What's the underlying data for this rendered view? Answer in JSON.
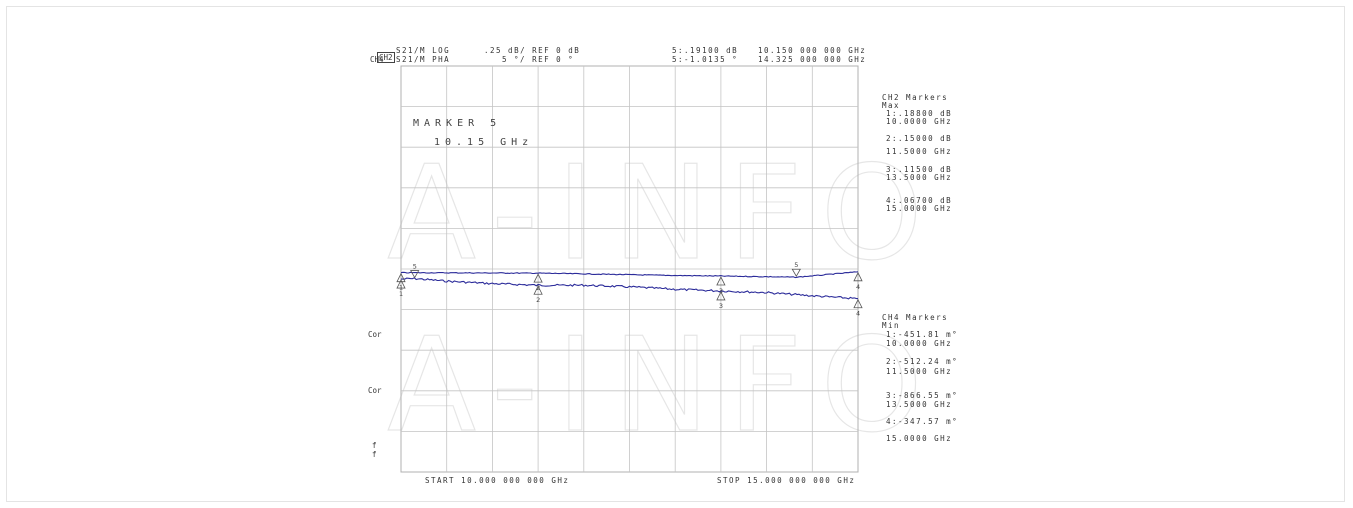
{
  "header": {
    "ch2_tag": "CH2",
    "ch2_param": "S21/M LOG",
    "ch2_scale": ".25 dB/ REF 0 dB",
    "ch2_marker_val": "5:.19100 dB",
    "ch2_marker_freq": "10.150 000 000 GHz",
    "ch4_tag": "CH4",
    "ch4_param": "S21/M PHA",
    "ch4_scale": "5 °/ REF 0 °",
    "ch4_marker_val": "5:-1.0135 °",
    "ch4_marker_freq": "14.325 000 000 GHz"
  },
  "marker_callout": {
    "line1": "MARKER 5",
    "line2": "10.15 GHz"
  },
  "left_labels": [
    "Cor",
    "Cor",
    "f",
    "f"
  ],
  "footer": {
    "start": "START 10.000 000 000 GHz",
    "stop": "STOP 15.000 000 000 GHz"
  },
  "ch2_markers": {
    "title": "CH2 Markers",
    "mode": "Max",
    "items": [
      {
        "label": "1:.18800 dB",
        "freq": "10.0000 GHz"
      },
      {
        "label": "2:.15000 dB",
        "freq": "11.5000 GHz"
      },
      {
        "label": "3:.11500 dB",
        "freq": "13.5000 GHz"
      },
      {
        "label": "4:.06700 dB",
        "freq": "15.0000 GHz"
      }
    ]
  },
  "ch4_markers": {
    "title": "CH4 Markers",
    "mode": "Min",
    "items": [
      {
        "label": "1:-451.81 m°",
        "freq": "10.0000 GHz"
      },
      {
        "label": "2:-512.24 m°",
        "freq": "11.5000 GHz"
      },
      {
        "label": "3:-866.55 m°",
        "freq": "13.5000 GHz"
      },
      {
        "label": "4:-347.57 m°",
        "freq": "15.0000 GHz"
      }
    ]
  },
  "watermark": "A-INFO",
  "chart_data": {
    "type": "line",
    "x_unit": "GHz",
    "xlim": [
      10,
      15
    ],
    "grid": true,
    "grid_divisions": {
      "x": 10,
      "y": 10
    },
    "series": [
      {
        "name": "S21/M LOG",
        "color": "#2b2b9a",
        "scale_per_div": 0.25,
        "reference": 0,
        "reference_division": 6,
        "x": [
          10.0,
          10.15,
          10.5,
          11.0,
          11.5,
          12.0,
          12.5,
          13.0,
          13.5,
          14.0,
          14.5,
          15.0
        ],
        "y": [
          0.188,
          0.191,
          0.175,
          0.16,
          0.15,
          0.15,
          0.14,
          0.125,
          0.115,
          0.105,
          0.085,
          0.067
        ]
      },
      {
        "name": "S21/M PHA",
        "color": "#2b2b9a",
        "scale_per_div": 5,
        "reference": 0,
        "reference_division": 5,
        "x": [
          10.0,
          10.5,
          11.0,
          11.5,
          12.0,
          12.5,
          13.0,
          13.5,
          14.0,
          14.325,
          14.6,
          15.0
        ],
        "y": [
          -0.45181,
          -0.47,
          -0.49,
          -0.51224,
          -0.6,
          -0.7,
          -0.8,
          -0.86655,
          -0.95,
          -1.0135,
          -0.75,
          -0.34757
        ]
      }
    ],
    "markers": [
      {
        "series": 0,
        "id": "1",
        "x": 10.0,
        "y": 0.188
      },
      {
        "series": 0,
        "id": "2",
        "x": 11.5,
        "y": 0.15
      },
      {
        "series": 0,
        "id": "3",
        "x": 13.5,
        "y": 0.115
      },
      {
        "series": 0,
        "id": "4",
        "x": 15.0,
        "y": 0.067
      },
      {
        "series": 0,
        "id": "5",
        "x": 10.15,
        "y": 0.191,
        "active": true
      },
      {
        "series": 1,
        "id": "1",
        "x": 10.0,
        "y": -0.45181
      },
      {
        "series": 1,
        "id": "2",
        "x": 11.5,
        "y": -0.51224
      },
      {
        "series": 1,
        "id": "3",
        "x": 13.5,
        "y": -0.86655
      },
      {
        "series": 1,
        "id": "4",
        "x": 15.0,
        "y": -0.34757
      },
      {
        "series": 1,
        "id": "5",
        "x": 14.325,
        "y": -1.0135,
        "active": true
      }
    ]
  }
}
